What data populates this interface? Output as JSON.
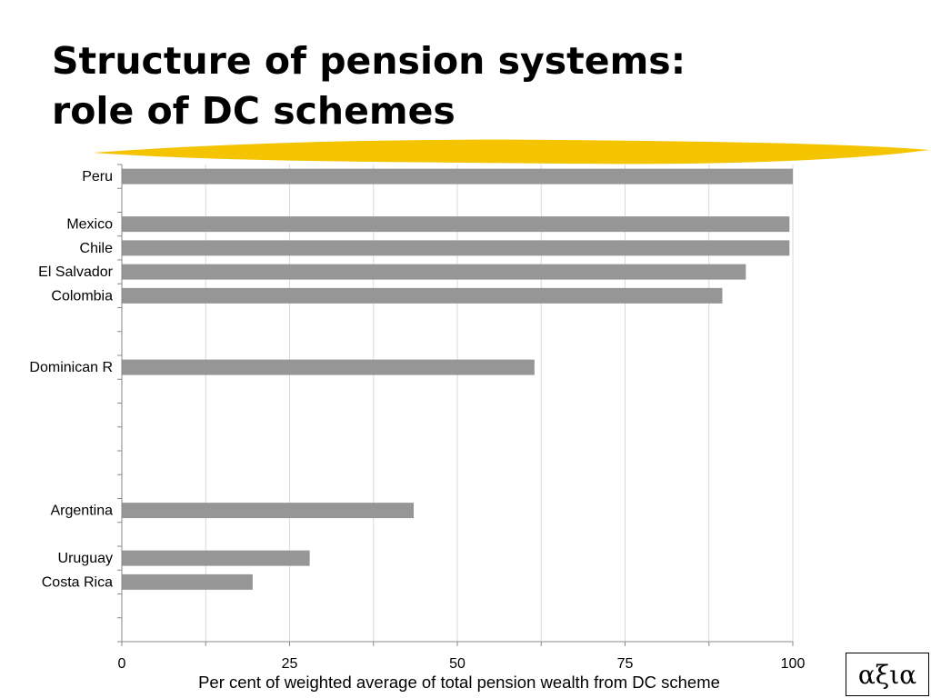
{
  "slide": {
    "title_line1": "Structure of pension systems:",
    "title_line2": "role of DC schemes",
    "logo_text": "αξια"
  },
  "colors": {
    "bar": "#969696",
    "grid": "#d9d9d9",
    "axis": "#888888",
    "highlighter": "#f5c400"
  },
  "chart_data": {
    "type": "bar",
    "orientation": "horizontal",
    "title": "",
    "xlabel": "Per cent of weighted average of total pension wealth from DC scheme",
    "ylabel": "",
    "xlim": [
      0,
      100
    ],
    "xticks": [
      0,
      25,
      50,
      75,
      100
    ],
    "grid": true,
    "categories": [
      "Peru",
      "",
      "Mexico",
      "Chile",
      "El Salvador",
      "Colombia",
      "",
      "",
      "Dominican R",
      "",
      "",
      "",
      "",
      "",
      "Argentina",
      "",
      "Uruguay",
      "Costa Rica",
      "",
      ""
    ],
    "values": [
      100,
      null,
      99.5,
      99.5,
      93,
      89.5,
      null,
      null,
      61.5,
      null,
      null,
      null,
      null,
      null,
      43.5,
      null,
      28,
      19.5,
      null,
      null
    ]
  }
}
